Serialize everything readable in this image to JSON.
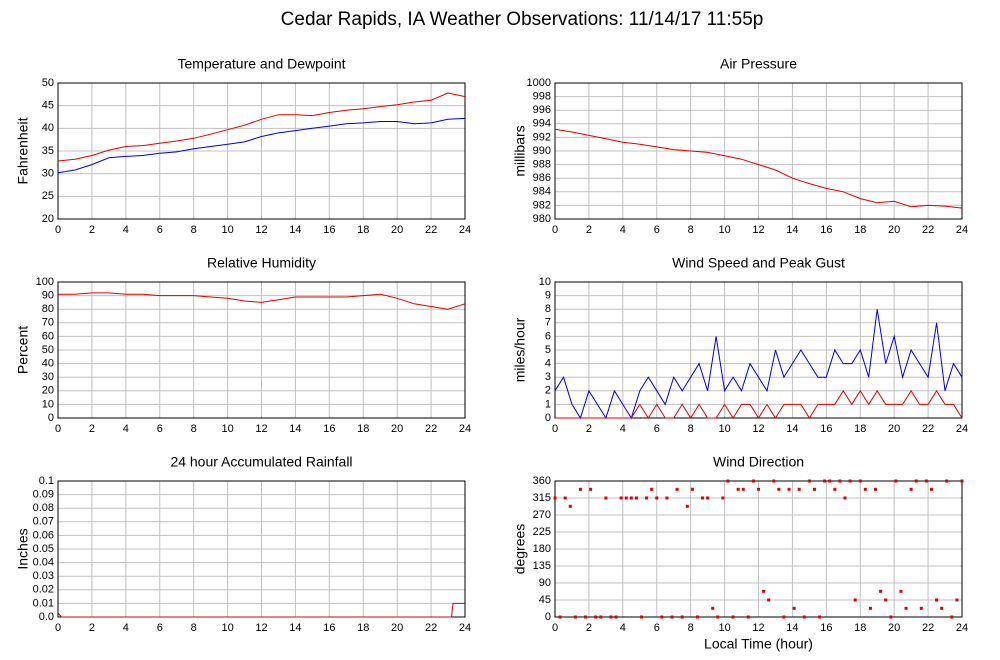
{
  "title": "Cedar Rapids, IA Weather Observations: 11/14/17 11:55p",
  "chart_data": [
    {
      "type": "line",
      "title": "Temperature and Dewpoint",
      "ylabel": "Fahrenheit",
      "x": [
        0,
        1,
        2,
        3,
        4,
        5,
        6,
        7,
        8,
        9,
        10,
        11,
        12,
        13,
        14,
        15,
        16,
        17,
        18,
        19,
        20,
        21,
        22,
        23,
        24
      ],
      "series": [
        {
          "color": "#e00000",
          "values": [
            32.8,
            33.2,
            34,
            35.2,
            36,
            36.2,
            36.7,
            37.2,
            37.8,
            38.7,
            39.7,
            40.7,
            42,
            43,
            43,
            42.8,
            43.5,
            44,
            44.3,
            44.8,
            45.2,
            45.8,
            46.2,
            47.8,
            47
          ]
        },
        {
          "color": "#0000e0",
          "values": [
            30.2,
            30.8,
            32,
            33.5,
            33.8,
            34,
            34.5,
            34.8,
            35.5,
            36,
            36.5,
            37,
            38.2,
            39,
            39.5,
            40,
            40.5,
            41,
            41.2,
            41.5,
            41.5,
            41,
            41.2,
            42,
            42.2
          ]
        }
      ],
      "xlim": [
        0,
        24
      ],
      "xticks": [
        0,
        2,
        4,
        6,
        8,
        10,
        12,
        14,
        16,
        18,
        20,
        22,
        24
      ],
      "ylim": [
        20,
        50
      ],
      "yticks": [
        20,
        25,
        30,
        35,
        40,
        45,
        50
      ],
      "grid": true
    },
    {
      "type": "line",
      "title": "Air Pressure",
      "ylabel": "millibars",
      "x": [
        0,
        1,
        2,
        3,
        4,
        5,
        6,
        7,
        8,
        9,
        10,
        11,
        12,
        13,
        14,
        15,
        16,
        17,
        18,
        19,
        20,
        21,
        22,
        23,
        24
      ],
      "series": [
        {
          "color": "#e00000",
          "values": [
            993.2,
            992.8,
            992.3,
            991.8,
            991.3,
            991,
            990.6,
            990.2,
            990,
            989.8,
            989.3,
            988.8,
            988,
            987.2,
            986,
            985.2,
            984.5,
            984,
            983,
            982.4,
            982.6,
            981.8,
            982,
            981.9,
            981.6
          ]
        }
      ],
      "xlim": [
        0,
        24
      ],
      "xticks": [
        0,
        2,
        4,
        6,
        8,
        10,
        12,
        14,
        16,
        18,
        20,
        22,
        24
      ],
      "ylim": [
        980,
        1000
      ],
      "yticks": [
        980,
        982,
        984,
        986,
        988,
        990,
        992,
        994,
        996,
        998,
        1000
      ],
      "grid": true
    },
    {
      "type": "line",
      "title": "Relative Humidity",
      "ylabel": "Percent",
      "x": [
        0,
        1,
        2,
        3,
        4,
        5,
        6,
        7,
        8,
        9,
        10,
        11,
        12,
        13,
        14,
        15,
        16,
        17,
        18,
        19,
        20,
        21,
        22,
        23,
        24
      ],
      "series": [
        {
          "color": "#e00000",
          "values": [
            91,
            91,
            92,
            92,
            91,
            91,
            90,
            90,
            90,
            89,
            88,
            86,
            85,
            87,
            89,
            89,
            89,
            89,
            90,
            91,
            88,
            84,
            82,
            80,
            84
          ]
        }
      ],
      "xlim": [
        0,
        24
      ],
      "xticks": [
        0,
        2,
        4,
        6,
        8,
        10,
        12,
        14,
        16,
        18,
        20,
        22,
        24
      ],
      "ylim": [
        0,
        100
      ],
      "yticks": [
        0,
        10,
        20,
        30,
        40,
        50,
        60,
        70,
        80,
        90,
        100
      ],
      "grid": true
    },
    {
      "type": "line",
      "title": "Wind Speed and Peak Gust",
      "ylabel": "miles/hour",
      "x": [
        0,
        0.5,
        1,
        1.5,
        2,
        2.5,
        3,
        3.5,
        4,
        4.5,
        5,
        5.5,
        6,
        6.5,
        7,
        7.5,
        8,
        8.5,
        9,
        9.5,
        10,
        10.5,
        11,
        11.5,
        12,
        12.5,
        13,
        13.5,
        14,
        14.5,
        15,
        15.5,
        16,
        16.5,
        17,
        17.5,
        18,
        18.5,
        19,
        19.5,
        20,
        20.5,
        21,
        21.5,
        22,
        22.5,
        23,
        23.5,
        24
      ],
      "series": [
        {
          "color": "#0000e0",
          "values": [
            2,
            3,
            1,
            0,
            2,
            1,
            0,
            2,
            1,
            0,
            2,
            3,
            2,
            1,
            3,
            2,
            3,
            4,
            2,
            6,
            2,
            3,
            2,
            4,
            3,
            2,
            5,
            3,
            4,
            5,
            4,
            3,
            3,
            5,
            4,
            4,
            5,
            3,
            8,
            4,
            6,
            3,
            5,
            4,
            3,
            7,
            2,
            4,
            3
          ]
        },
        {
          "color": "#e00000",
          "values": [
            0,
            0,
            0,
            0,
            0,
            0,
            0,
            0,
            0,
            0,
            1,
            0,
            1,
            0,
            0,
            1,
            0,
            1,
            0,
            0,
            1,
            0,
            1,
            1,
            0,
            1,
            0,
            1,
            1,
            1,
            0,
            1,
            1,
            1,
            2,
            1,
            2,
            1,
            2,
            1,
            1,
            1,
            2,
            1,
            1,
            2,
            1,
            1,
            0
          ]
        }
      ],
      "xlim": [
        0,
        24
      ],
      "xticks": [
        0,
        2,
        4,
        6,
        8,
        10,
        12,
        14,
        16,
        18,
        20,
        22,
        24
      ],
      "ylim": [
        0,
        10
      ],
      "yticks": [
        0,
        1,
        2,
        3,
        4,
        5,
        6,
        7,
        8,
        9,
        10
      ],
      "grid": true
    },
    {
      "type": "line",
      "title": "24 hour Accumulated Rainfall",
      "ylabel": "Inches",
      "x": [
        0,
        0.2,
        23.2,
        23.3,
        24
      ],
      "series": [
        {
          "color": "#e00000",
          "values": [
            0.003,
            0,
            0,
            0.01,
            0.01
          ]
        }
      ],
      "xlim": [
        0,
        24
      ],
      "xticks": [
        0,
        2,
        4,
        6,
        8,
        10,
        12,
        14,
        16,
        18,
        20,
        22,
        24
      ],
      "ylim": [
        0,
        0.1
      ],
      "yticks": [
        {
          "value": 0,
          "label": "0.0"
        },
        0.01,
        0.02,
        0.03,
        0.04,
        0.05,
        0.06,
        0.07,
        0.08,
        0.09,
        0.1
      ],
      "grid": true
    },
    {
      "type": "scatter",
      "title": "Wind Direction",
      "ylabel": "degrees",
      "xlabel": "Local Time (hour)",
      "x": [
        0,
        0.3,
        0.6,
        0.9,
        1.2,
        1.5,
        1.8,
        2.1,
        2.4,
        2.7,
        3.0,
        3.3,
        3.6,
        3.9,
        4.2,
        4.5,
        4.8,
        5.1,
        5.4,
        5.7,
        6.0,
        6.3,
        6.6,
        6.9,
        7.2,
        7.5,
        7.8,
        8.1,
        8.4,
        8.7,
        9.0,
        9.3,
        9.6,
        9.9,
        10.2,
        10.5,
        10.8,
        11.1,
        11.4,
        11.7,
        12.0,
        12.3,
        12.6,
        12.9,
        13.2,
        13.5,
        13.8,
        14.1,
        14.4,
        14.7,
        15.0,
        15.3,
        15.6,
        15.9,
        16.2,
        16.5,
        16.8,
        17.1,
        17.4,
        17.7,
        18.0,
        18.3,
        18.6,
        18.9,
        19.2,
        19.5,
        19.8,
        20.1,
        20.4,
        20.7,
        21.0,
        21.3,
        21.6,
        21.9,
        22.2,
        22.5,
        22.8,
        23.1,
        23.4,
        23.7,
        24
      ],
      "series": [
        {
          "color": "#e00000",
          "values": [
            315,
            0,
            315,
            293,
            0,
            338,
            0,
            338,
            0,
            0,
            315,
            0,
            0,
            315,
            315,
            315,
            315,
            0,
            315,
            338,
            315,
            0,
            315,
            0,
            338,
            0,
            293,
            338,
            0,
            315,
            315,
            23,
            0,
            315,
            360,
            0,
            338,
            338,
            0,
            360,
            338,
            68,
            45,
            360,
            338,
            0,
            338,
            23,
            338,
            0,
            360,
            338,
            0,
            360,
            360,
            338,
            360,
            315,
            360,
            45,
            360,
            338,
            23,
            338,
            68,
            45,
            0,
            360,
            68,
            23,
            338,
            360,
            23,
            360,
            338,
            45,
            23,
            360,
            0,
            45,
            360
          ]
        }
      ],
      "xlim": [
        0,
        24
      ],
      "xticks": [
        0,
        2,
        4,
        6,
        8,
        10,
        12,
        14,
        16,
        18,
        20,
        22,
        24
      ],
      "ylim": [
        0,
        360
      ],
      "yticks": [
        0,
        45,
        90,
        135,
        180,
        225,
        270,
        315,
        360
      ],
      "grid": true
    }
  ]
}
